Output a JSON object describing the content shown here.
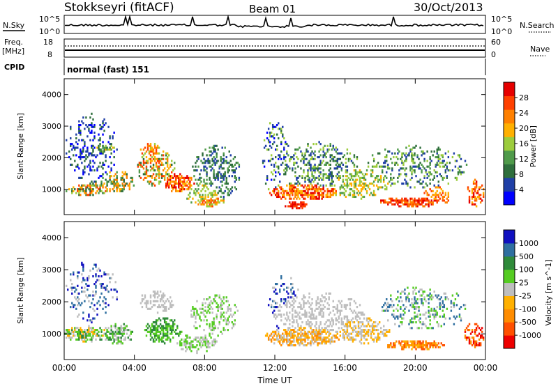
{
  "header": {
    "title": "Stokkseyri (fitACF)",
    "beam": "Beam 01",
    "date": "30/Oct/2013"
  },
  "nsky_panel": {
    "label": "N.Sky",
    "ytick_top": "10^5",
    "ytick_bottom": "10^0",
    "right_tick_top": "10^5",
    "right_tick_bottom": "10^0",
    "right_label": "N.Search"
  },
  "freq_panel": {
    "label_line1": "Freq.",
    "label_line2": "[MHz]",
    "ytick_top": "18",
    "ytick_bottom": "8",
    "right_tick_top": "60",
    "right_tick_bottom": "0",
    "right_label": "Nave"
  },
  "cpid_panel": {
    "label": "CPID",
    "text": "normal (fast) 151"
  },
  "colors": {
    "power": [
      "#0000ff",
      "#1f3fa6",
      "#2e6e3c",
      "#4f9a4a",
      "#9ccc3c",
      "#ffb000",
      "#ff8000",
      "#ff4000",
      "#e60000"
    ],
    "velocity": [
      "#ee0000",
      "#ff5000",
      "#ff8c00",
      "#ffb000",
      "#bebebe",
      "#55cc22",
      "#2f8a3a",
      "#2f6fa0",
      "#1010c0"
    ]
  },
  "chart_data": [
    {
      "type": "heatmap",
      "name": "power",
      "ylabel": "Slant Range [km]",
      "ylim": [
        200,
        4500
      ],
      "yticks": [
        "1000",
        "2000",
        "3000",
        "4000"
      ],
      "x": [
        "00:00",
        "04:00",
        "08:00",
        "12:00",
        "16:00",
        "20:00",
        "00:00"
      ],
      "colorbar": {
        "label": "Power [dB]",
        "ticks": [
          "4",
          "8",
          "12",
          "16",
          "20",
          "24",
          "28"
        ],
        "range": [
          0,
          32
        ]
      }
    },
    {
      "type": "heatmap",
      "name": "velocity",
      "ylabel": "Slant Range [km]",
      "ylim": [
        200,
        4500
      ],
      "yticks": [
        "1000",
        "2000",
        "3000",
        "4000"
      ],
      "x": [
        "00:00",
        "04:00",
        "08:00",
        "12:00",
        "16:00",
        "20:00",
        "00:00"
      ],
      "xlabel": "Time UT",
      "colorbar": {
        "label": "Velocity [m s^-1]",
        "ticks": [
          "1000",
          "500",
          "100",
          "25",
          "-25",
          "-100",
          "-500",
          "-1000"
        ]
      }
    }
  ]
}
